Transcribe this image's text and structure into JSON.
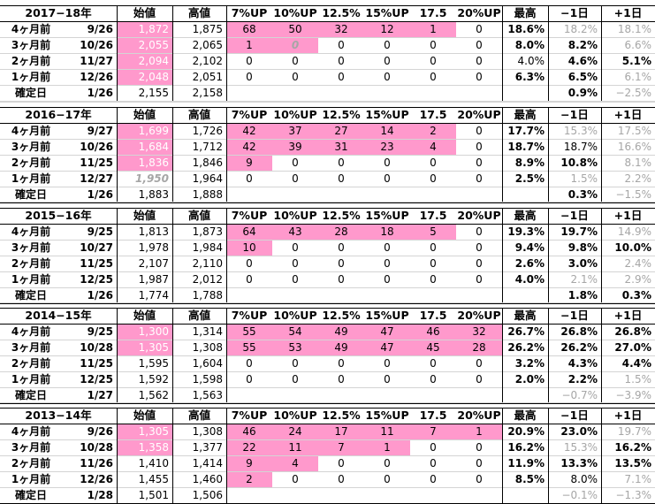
{
  "headers": [
    "始値",
    "高値",
    "7%UP",
    "10%UP",
    "12.5%",
    "15%UP",
    "17.5",
    "20%UP",
    "最高",
    "−1日",
    "+1日"
  ],
  "blocks": [
    {
      "title": "2017−18年",
      "rows": [
        {
          "label": "4ヶ月前",
          "date": "9/26",
          "open": "1,872",
          "high": "1,875",
          "lv": [
            "68",
            "50",
            "32",
            "12",
            "1",
            "0"
          ],
          "max": "18.6%",
          "m1": "18.2%",
          "p1": "18.1%"
        },
        {
          "label": "3ヶ月前",
          "date": "10/26",
          "open": "2,055",
          "high": "2,065",
          "lv": [
            "1",
            "0",
            "0",
            "0",
            "0",
            "0"
          ],
          "max": "8.0%",
          "m1": "8.2%",
          "p1": "6.6%"
        },
        {
          "label": "2ヶ月前",
          "date": "11/27",
          "open": "2,094",
          "high": "2,102",
          "lv": [
            "0",
            "0",
            "0",
            "0",
            "0",
            "0"
          ],
          "max": "4.0%",
          "m1": "4.6%",
          "p1": "5.1%"
        },
        {
          "label": "1ヶ月前",
          "date": "12/26",
          "open": "2,048",
          "high": "2,051",
          "lv": [
            "0",
            "0",
            "0",
            "0",
            "0",
            "0"
          ],
          "max": "6.3%",
          "m1": "6.5%",
          "p1": "6.1%"
        }
      ],
      "confirm": {
        "label": "確定日",
        "date": "1/26",
        "open": "2,155",
        "high": "2,158",
        "m1": "0.9%",
        "p1": "−2.5%"
      }
    },
    {
      "title": "2016−17年",
      "rows": [
        {
          "label": "4ヶ月前",
          "date": "9/27",
          "open": "1,699",
          "high": "1,726",
          "lv": [
            "42",
            "37",
            "27",
            "14",
            "2",
            "0"
          ],
          "max": "17.7%",
          "m1": "15.3%",
          "p1": "17.5%"
        },
        {
          "label": "3ヶ月前",
          "date": "10/26",
          "open": "1,684",
          "high": "1,712",
          "lv": [
            "42",
            "39",
            "31",
            "23",
            "4",
            "0"
          ],
          "max": "18.7%",
          "m1": "18.7%",
          "p1": "16.6%"
        },
        {
          "label": "2ヶ月前",
          "date": "11/25",
          "open": "1,836",
          "high": "1,846",
          "lv": [
            "9",
            "0",
            "0",
            "0",
            "0",
            "0"
          ],
          "max": "8.9%",
          "m1": "10.8%",
          "p1": "8.1%"
        },
        {
          "label": "1ヶ月前",
          "date": "12/27",
          "open": "1,950",
          "high": "1,964",
          "lv": [
            "0",
            "0",
            "0",
            "0",
            "0",
            "0"
          ],
          "max": "2.5%",
          "m1": "1.5%",
          "p1": "2.2%"
        }
      ],
      "confirm": {
        "label": "確定日",
        "date": "1/26",
        "open": "1,883",
        "high": "1,888",
        "m1": "0.3%",
        "p1": "−1.5%"
      }
    },
    {
      "title": "2015−16年",
      "rows": [
        {
          "label": "4ヶ月前",
          "date": "9/25",
          "open": "1,813",
          "high": "1,873",
          "lv": [
            "64",
            "43",
            "28",
            "18",
            "5",
            "0"
          ],
          "max": "19.3%",
          "m1": "19.7%",
          "p1": "14.9%"
        },
        {
          "label": "3ヶ月前",
          "date": "10/27",
          "open": "1,978",
          "high": "1,984",
          "lv": [
            "10",
            "0",
            "0",
            "0",
            "0",
            "0"
          ],
          "max": "9.4%",
          "m1": "9.8%",
          "p1": "10.0%"
        },
        {
          "label": "2ヶ月前",
          "date": "11/25",
          "open": "2,107",
          "high": "2,110",
          "lv": [
            "0",
            "0",
            "0",
            "0",
            "0",
            "0"
          ],
          "max": "2.6%",
          "m1": "3.0%",
          "p1": "2.4%"
        },
        {
          "label": "1ヶ月前",
          "date": "12/25",
          "open": "1,987",
          "high": "2,012",
          "lv": [
            "0",
            "0",
            "0",
            "0",
            "0",
            "0"
          ],
          "max": "4.0%",
          "m1": "2.1%",
          "p1": "2.9%"
        }
      ],
      "confirm": {
        "label": "確定日",
        "date": "1/26",
        "open": "1,774",
        "high": "1,788",
        "m1": "1.8%",
        "p1": "0.3%"
      }
    },
    {
      "title": "2014−15年",
      "rows": [
        {
          "label": "4ヶ月前",
          "date": "9/25",
          "open": "1,300",
          "high": "1,314",
          "lv": [
            "55",
            "54",
            "49",
            "47",
            "46",
            "32"
          ],
          "max": "26.7%",
          "m1": "26.8%",
          "p1": "26.8%"
        },
        {
          "label": "3ヶ月前",
          "date": "10/28",
          "open": "1,305",
          "high": "1,308",
          "lv": [
            "55",
            "53",
            "49",
            "47",
            "45",
            "28"
          ],
          "max": "26.2%",
          "m1": "26.2%",
          "p1": "27.0%"
        },
        {
          "label": "2ヶ月前",
          "date": "11/25",
          "open": "1,595",
          "high": "1,604",
          "lv": [
            "0",
            "0",
            "0",
            "0",
            "0",
            "0"
          ],
          "max": "3.2%",
          "m1": "4.3%",
          "p1": "4.4%"
        },
        {
          "label": "1ヶ月前",
          "date": "12/25",
          "open": "1,592",
          "high": "1,598",
          "lv": [
            "0",
            "0",
            "0",
            "0",
            "0",
            "0"
          ],
          "max": "2.0%",
          "m1": "2.2%",
          "p1": "1.5%"
        }
      ],
      "confirm": {
        "label": "確定日",
        "date": "1/27",
        "open": "1,562",
        "high": "1,563",
        "m1": "−0.7%",
        "p1": "−3.9%"
      }
    },
    {
      "title": "2013−14年",
      "rows": [
        {
          "label": "4ヶ月前",
          "date": "9/26",
          "open": "1,305",
          "high": "1,308",
          "lv": [
            "46",
            "24",
            "17",
            "11",
            "7",
            "1"
          ],
          "max": "20.9%",
          "m1": "23.0%",
          "p1": "19.7%"
        },
        {
          "label": "3ヶ月前",
          "date": "10/28",
          "open": "1,358",
          "high": "1,377",
          "lv": [
            "22",
            "11",
            "7",
            "1",
            "0",
            "0"
          ],
          "max": "16.2%",
          "m1": "15.3%",
          "p1": "16.2%"
        },
        {
          "label": "2ヶ月前",
          "date": "11/26",
          "open": "1,410",
          "high": "1,414",
          "lv": [
            "9",
            "4",
            "0",
            "0",
            "0",
            "0"
          ],
          "max": "11.9%",
          "m1": "13.3%",
          "p1": "13.5%"
        },
        {
          "label": "1ヶ月前",
          "date": "12/26",
          "open": "1,455",
          "high": "1,460",
          "lv": [
            "2",
            "0",
            "0",
            "0",
            "0",
            "0"
          ],
          "max": "8.5%",
          "m1": "8.0%",
          "p1": "7.1%"
        }
      ],
      "confirm": {
        "label": "確定日",
        "date": "1/28",
        "open": "1,501",
        "high": "1,506",
        "m1": "−0.1%",
        "p1": "−1.3%"
      }
    }
  ]
}
